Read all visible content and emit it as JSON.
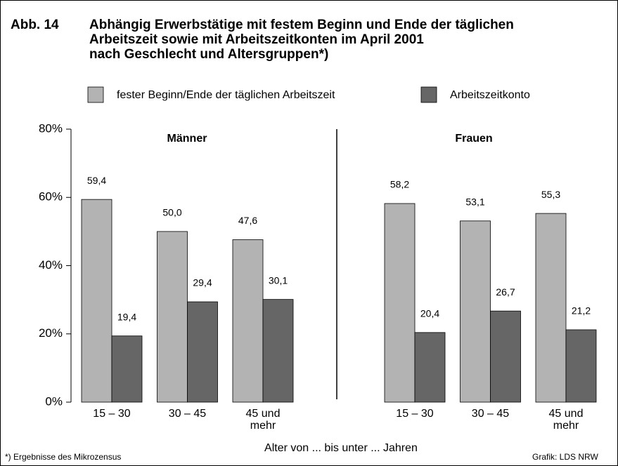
{
  "chart_data": {
    "type": "bar",
    "figure_label": "Abb. 14",
    "title_lines": [
      "Abhängig Erwerbstätige mit festem Beginn und Ende der täglichen",
      "Arbeitszeit sowie mit Arbeitszeitkonten im April 2001",
      "nach Geschlecht und Altersgruppen*)"
    ],
    "series": [
      {
        "name": "fester Beginn/Ende der täglichen Arbeitszeit",
        "color": "#b3b3b3"
      },
      {
        "name": "Arbeitszeitkonto",
        "color": "#666666"
      }
    ],
    "panels": [
      {
        "title": "Männer",
        "categories": [
          "15 – 30",
          "30 – 45",
          "45 und\nmehr"
        ],
        "series": [
          {
            "values": [
              59.4,
              50.0,
              47.6
            ],
            "value_labels": [
              "59,4",
              "50,0",
              "47,6"
            ]
          },
          {
            "values": [
              19.4,
              29.4,
              30.1
            ],
            "value_labels": [
              "19,4",
              "29,4",
              "30,1"
            ]
          }
        ]
      },
      {
        "title": "Frauen",
        "categories": [
          "15 – 30",
          "30 – 45",
          "45 und\nmehr"
        ],
        "series": [
          {
            "values": [
              58.2,
              53.1,
              55.3
            ],
            "value_labels": [
              "58,2",
              "53,1",
              "55,3"
            ]
          },
          {
            "values": [
              20.4,
              26.7,
              21.2
            ],
            "value_labels": [
              "20,4",
              "26,7",
              "21,2"
            ]
          }
        ]
      }
    ],
    "ylim": [
      0,
      80
    ],
    "yticks": [
      {
        "value": 0,
        "label": "0%"
      },
      {
        "value": 20,
        "label": "20%"
      },
      {
        "value": 40,
        "label": "40%"
      },
      {
        "value": 60,
        "label": "60%"
      },
      {
        "value": 80,
        "label": "80%"
      }
    ],
    "xlabel": "Alter von ... bis unter ... Jahren",
    "footnote": "*) Ergebnisse des Mikrozensus",
    "source": "Grafik: LDS NRW"
  }
}
